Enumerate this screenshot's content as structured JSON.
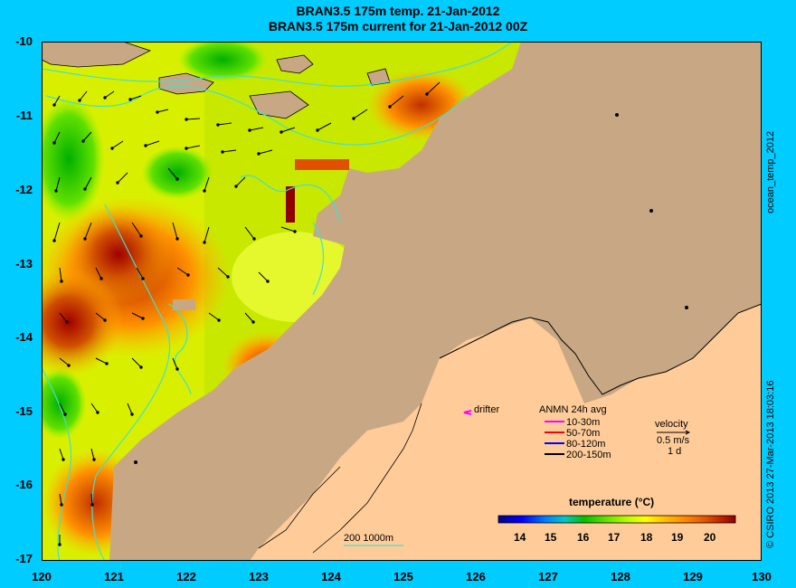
{
  "title": "BRAN3.5 175m temp. 21-Jan-2012",
  "subtitle": "BRAN3.5 175m current for 21-Jan-2012 00Z",
  "side_label_code": "ocean_temp_2012",
  "side_label_credit": "© CSIRO 2013   27-Mar-2013 18:03:16",
  "axes": {
    "x_ticks": [
      "120",
      "121",
      "122",
      "123",
      "124",
      "125",
      "126",
      "127",
      "128",
      "129",
      "130"
    ],
    "y_ticks": [
      "-10",
      "-11",
      "-12",
      "-13",
      "-14",
      "-15",
      "-16",
      "-17"
    ]
  },
  "legend": {
    "drifter_label": "drifter",
    "anmn_title": "ANMN 24h avg",
    "anmn_items": [
      {
        "label": "10-30m",
        "color": "#ff00ff"
      },
      {
        "label": "50-70m",
        "color": "#ff0000"
      },
      {
        "label": "80-120m",
        "color": "#0000ff"
      },
      {
        "label": "200-150m",
        "color": "#000000"
      }
    ],
    "velocity_title": "velocity",
    "velocity_speed": "0.5 m/s",
    "velocity_time": "1 d",
    "bathymetry_label": "200  1000m"
  },
  "colorbar": {
    "title": "temperature (°C)",
    "ticks": [
      "14",
      "15",
      "16",
      "17",
      "18",
      "19",
      "20"
    ],
    "colors": [
      "#00008b",
      "#0000ff",
      "#0080ff",
      "#00c8c8",
      "#00c000",
      "#60e000",
      "#c0ff00",
      "#ffff00",
      "#ffc000",
      "#ff8000",
      "#e05000",
      "#c02000",
      "#900000"
    ]
  },
  "colors": {
    "sea_background": "#00ccff",
    "land": "#c8a884",
    "land_light": "#ffcc99",
    "isobath": "#40e0d0"
  }
}
